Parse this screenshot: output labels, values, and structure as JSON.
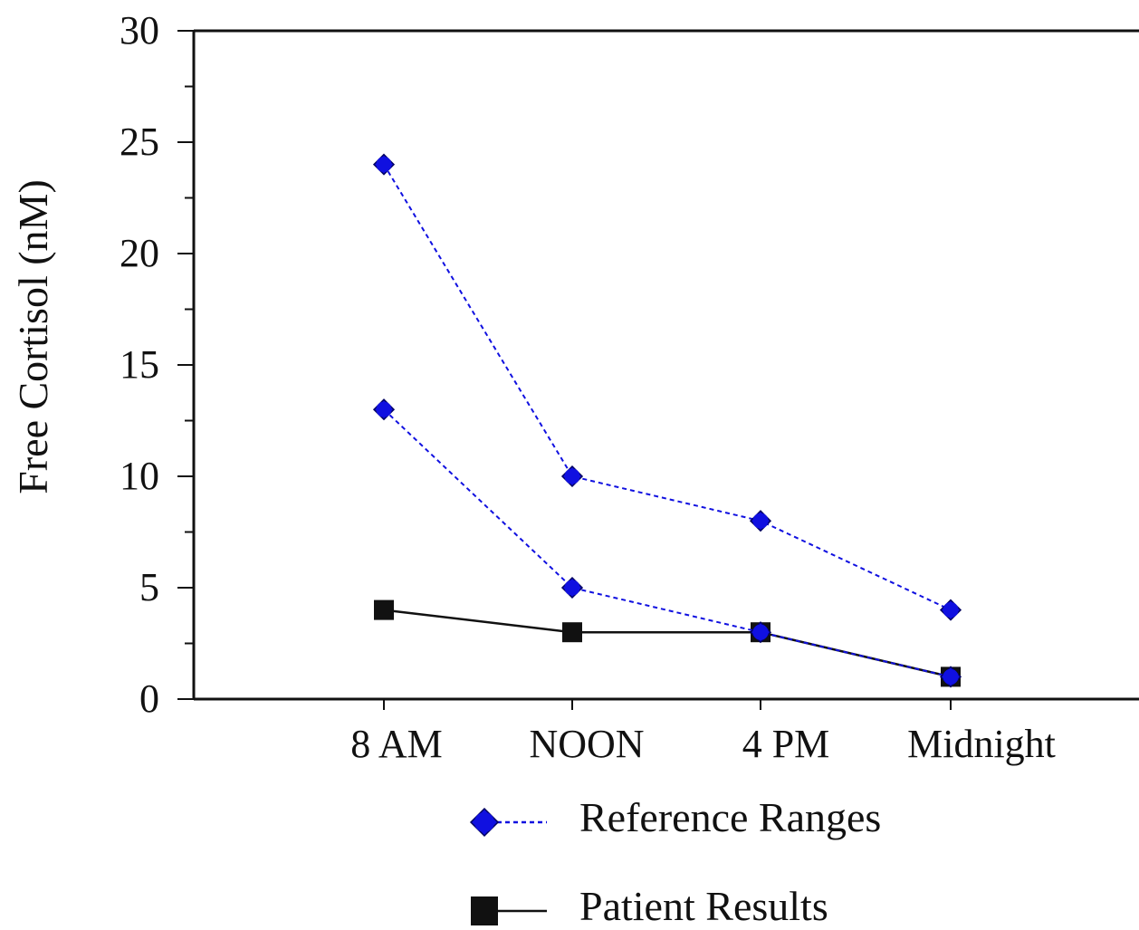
{
  "chart_data": {
    "type": "line",
    "title": "",
    "xlabel": "",
    "ylabel": "Free Cortisol (nM)",
    "categories": [
      "8 AM",
      "NOON",
      "4 PM",
      "Midnight"
    ],
    "ylim": [
      0,
      30
    ],
    "yticks": [
      0,
      5,
      10,
      15,
      20,
      25,
      30
    ],
    "grid": false,
    "legend_position": "bottom",
    "series": [
      {
        "name": "Reference Ranges",
        "role": "upper",
        "values": [
          24,
          10,
          8,
          4
        ],
        "color": "#1010e0",
        "line_style": "dashed",
        "marker": "diamond"
      },
      {
        "name": "Reference Ranges",
        "role": "lower",
        "values": [
          13,
          5,
          3,
          1
        ],
        "color": "#1010e0",
        "line_style": "dashed",
        "marker": "diamond"
      },
      {
        "name": "Patient Results",
        "values": [
          4,
          3,
          3,
          1
        ],
        "color": "#111111",
        "line_style": "solid",
        "marker": "square"
      }
    ],
    "legend": [
      {
        "label": "Reference Ranges",
        "marker": "diamond",
        "line_style": "dashed",
        "color": "#1010e0"
      },
      {
        "label": "Patient Results",
        "marker": "square",
        "line_style": "solid",
        "color": "#111111"
      }
    ]
  }
}
